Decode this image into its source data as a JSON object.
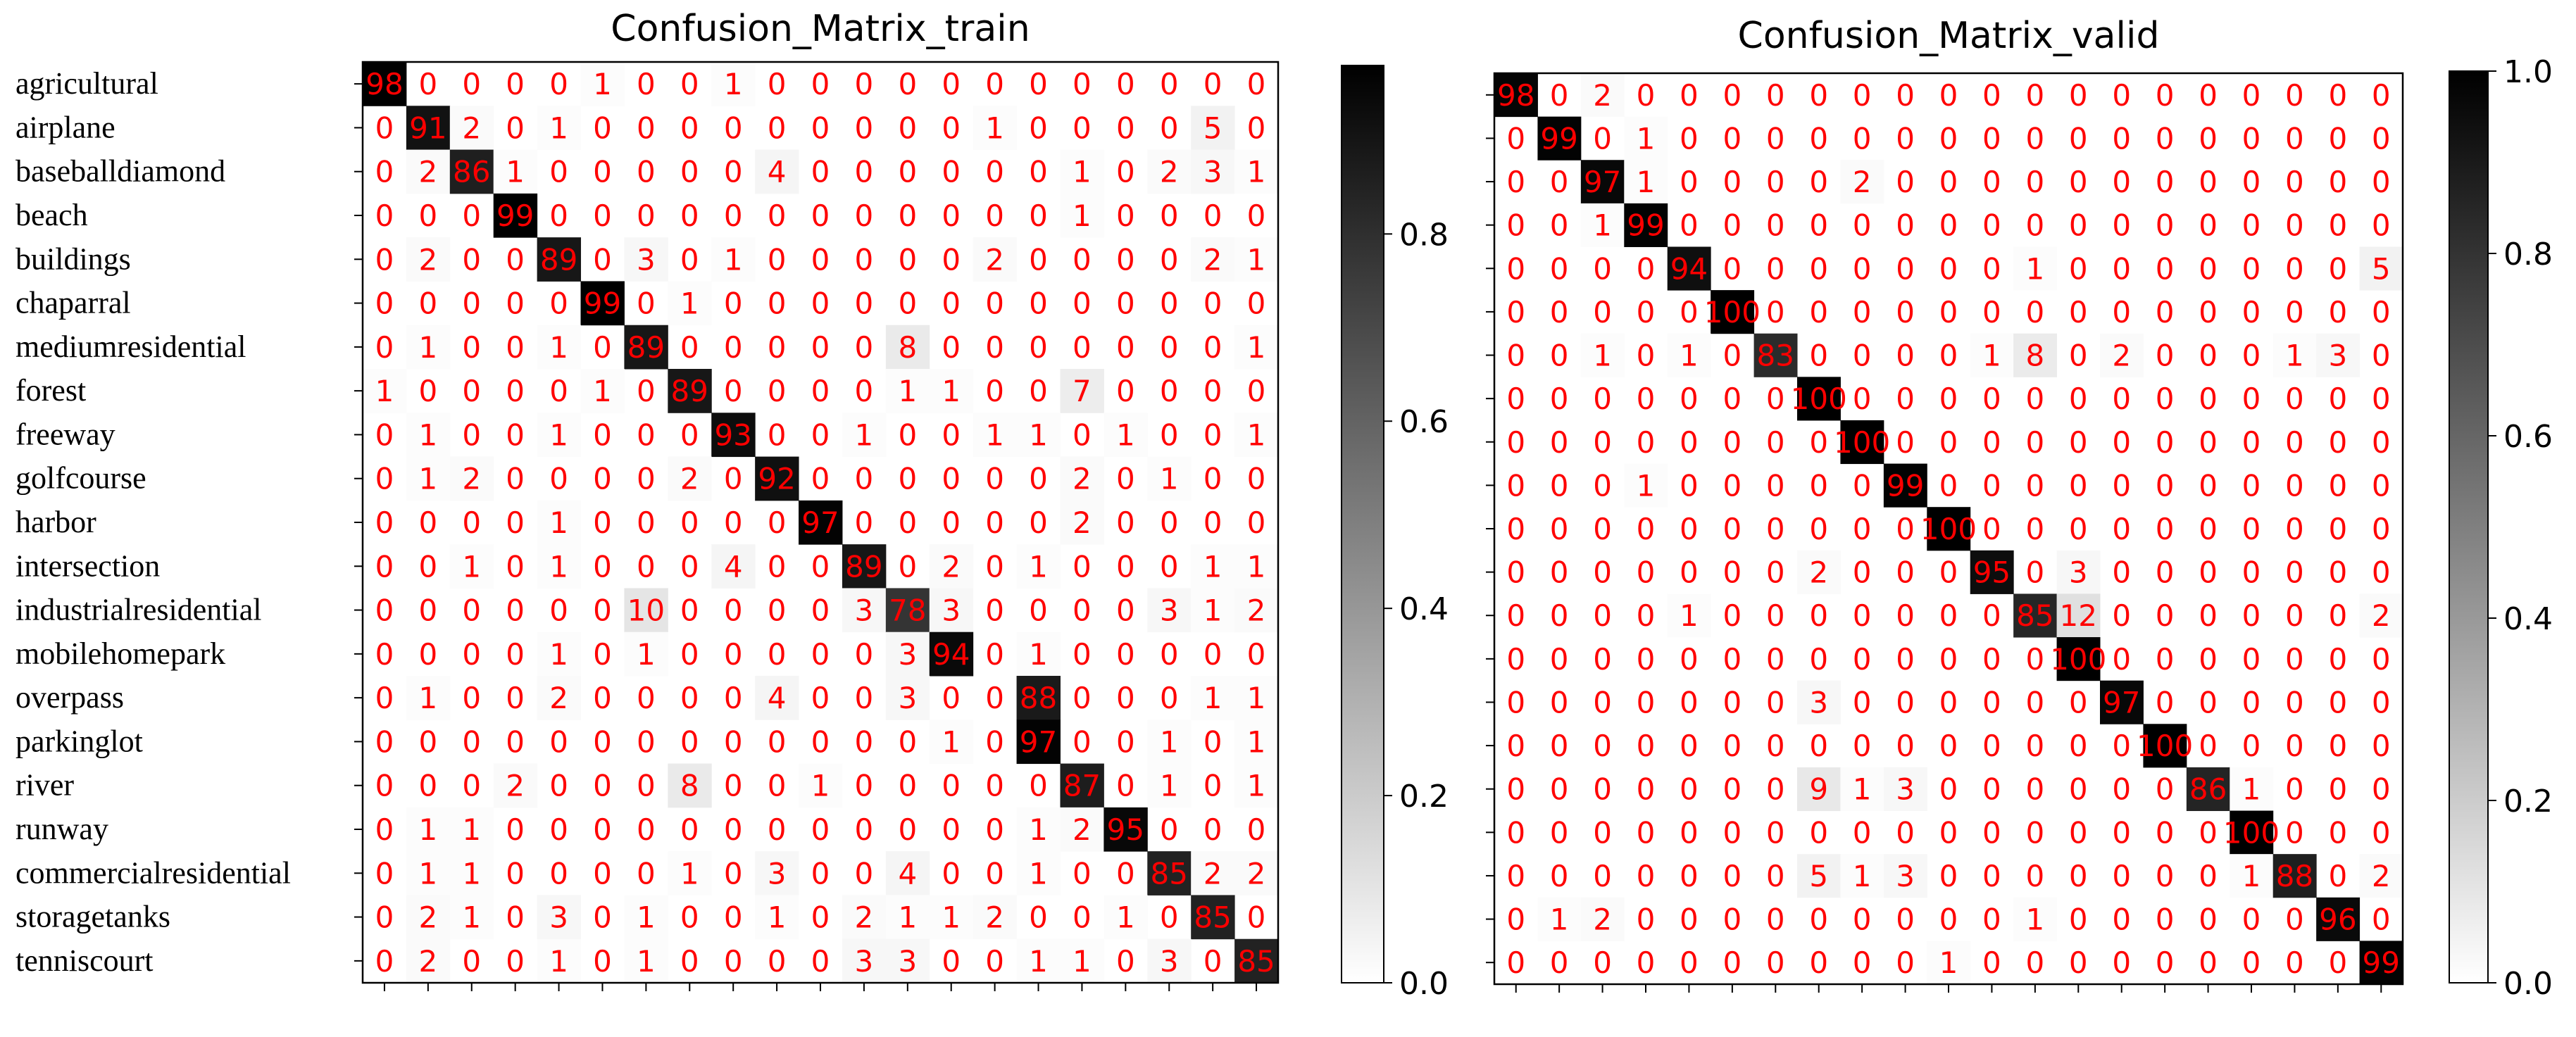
{
  "class_labels": [
    "agricultural",
    "airplane",
    "baseballdiamond",
    "beach",
    "buildings",
    "chaparral",
    "mediumresidential",
    "forest",
    "freeway",
    "golfcourse",
    "harbor",
    "intersection",
    "industrialresidential",
    "mobilehomepark",
    "overpass",
    "parkinglot",
    "river",
    "runway",
    "commercialresidential",
    "storagetanks",
    "tenniscourt"
  ],
  "colors": {
    "cell_text": "#ff0000",
    "cmap_low": "#ffffff",
    "cmap_high": "#000000",
    "frame": "#000000"
  },
  "chart_data": [
    {
      "type": "heatmap",
      "title": "Confusion_Matrix_train",
      "row_labels": [
        "agricultural",
        "airplane",
        "baseballdiamond",
        "beach",
        "buildings",
        "chaparral",
        "mediumresidential",
        "forest",
        "freeway",
        "golfcourse",
        "harbor",
        "intersection",
        "industrialresidential",
        "mobilehomepark",
        "overpass",
        "parkinglot",
        "river",
        "runway",
        "commercialresidential",
        "storagetanks",
        "tenniscourt"
      ],
      "values": [
        [
          98,
          0,
          0,
          0,
          0,
          1,
          0,
          0,
          1,
          0,
          0,
          0,
          0,
          0,
          0,
          0,
          0,
          0,
          0,
          0,
          0
        ],
        [
          0,
          91,
          2,
          0,
          1,
          0,
          0,
          0,
          0,
          0,
          0,
          0,
          0,
          0,
          1,
          0,
          0,
          0,
          0,
          5,
          0
        ],
        [
          0,
          2,
          86,
          1,
          0,
          0,
          0,
          0,
          0,
          4,
          0,
          0,
          0,
          0,
          0,
          0,
          1,
          0,
          2,
          3,
          1
        ],
        [
          0,
          0,
          0,
          99,
          0,
          0,
          0,
          0,
          0,
          0,
          0,
          0,
          0,
          0,
          0,
          0,
          1,
          0,
          0,
          0,
          0
        ],
        [
          0,
          2,
          0,
          0,
          89,
          0,
          3,
          0,
          1,
          0,
          0,
          0,
          0,
          0,
          2,
          0,
          0,
          0,
          0,
          2,
          1
        ],
        [
          0,
          0,
          0,
          0,
          0,
          99,
          0,
          1,
          0,
          0,
          0,
          0,
          0,
          0,
          0,
          0,
          0,
          0,
          0,
          0,
          0
        ],
        [
          0,
          1,
          0,
          0,
          1,
          0,
          89,
          0,
          0,
          0,
          0,
          0,
          8,
          0,
          0,
          0,
          0,
          0,
          0,
          0,
          1
        ],
        [
          1,
          0,
          0,
          0,
          0,
          1,
          0,
          89,
          0,
          0,
          0,
          0,
          1,
          1,
          0,
          0,
          7,
          0,
          0,
          0,
          0
        ],
        [
          0,
          1,
          0,
          0,
          1,
          0,
          0,
          0,
          93,
          0,
          0,
          1,
          0,
          0,
          1,
          1,
          0,
          1,
          0,
          0,
          1
        ],
        [
          0,
          1,
          2,
          0,
          0,
          0,
          0,
          2,
          0,
          92,
          0,
          0,
          0,
          0,
          0,
          0,
          2,
          0,
          1,
          0,
          0
        ],
        [
          0,
          0,
          0,
          0,
          1,
          0,
          0,
          0,
          0,
          0,
          97,
          0,
          0,
          0,
          0,
          0,
          2,
          0,
          0,
          0,
          0
        ],
        [
          0,
          0,
          1,
          0,
          1,
          0,
          0,
          0,
          4,
          0,
          0,
          89,
          0,
          2,
          0,
          1,
          0,
          0,
          0,
          1,
          1
        ],
        [
          0,
          0,
          0,
          0,
          0,
          0,
          10,
          0,
          0,
          0,
          0,
          3,
          78,
          3,
          0,
          0,
          0,
          0,
          3,
          1,
          2
        ],
        [
          0,
          0,
          0,
          0,
          1,
          0,
          1,
          0,
          0,
          0,
          0,
          0,
          3,
          94,
          0,
          1,
          0,
          0,
          0,
          0,
          0
        ],
        [
          0,
          1,
          0,
          0,
          2,
          0,
          0,
          0,
          0,
          4,
          0,
          0,
          3,
          0,
          0,
          88,
          0,
          0,
          0,
          1,
          1
        ],
        [
          0,
          0,
          0,
          0,
          0,
          0,
          0,
          0,
          0,
          0,
          0,
          0,
          0,
          1,
          0,
          97,
          0,
          0,
          1,
          0,
          1
        ],
        [
          0,
          0,
          0,
          2,
          0,
          0,
          0,
          8,
          0,
          0,
          1,
          0,
          0,
          0,
          0,
          0,
          87,
          0,
          1,
          0,
          1
        ],
        [
          0,
          1,
          1,
          0,
          0,
          0,
          0,
          0,
          0,
          0,
          0,
          0,
          0,
          0,
          0,
          1,
          2,
          95,
          0,
          0,
          0
        ],
        [
          0,
          1,
          1,
          0,
          0,
          0,
          0,
          1,
          0,
          3,
          0,
          0,
          4,
          0,
          0,
          1,
          0,
          0,
          85,
          2,
          2
        ],
        [
          0,
          2,
          1,
          0,
          3,
          0,
          1,
          0,
          0,
          1,
          0,
          2,
          1,
          1,
          2,
          0,
          0,
          1,
          0,
          85,
          0
        ],
        [
          0,
          2,
          0,
          0,
          1,
          0,
          1,
          0,
          0,
          0,
          0,
          3,
          3,
          0,
          0,
          1,
          1,
          0,
          3,
          0,
          85
        ]
      ],
      "colorbar": {
        "range": [
          0,
          0.98
        ],
        "ticks": [
          "0.0",
          "0.2",
          "0.4",
          "0.6",
          "0.8"
        ],
        "tick_values": [
          0,
          0.2,
          0.4,
          0.6,
          0.8
        ]
      },
      "grid": false
    },
    {
      "type": "heatmap",
      "title": "Confusion_Matrix_valid",
      "values": [
        [
          98,
          0,
          2,
          0,
          0,
          0,
          0,
          0,
          0,
          0,
          0,
          0,
          0,
          0,
          0,
          0,
          0,
          0,
          0,
          0,
          0
        ],
        [
          0,
          99,
          0,
          1,
          0,
          0,
          0,
          0,
          0,
          0,
          0,
          0,
          0,
          0,
          0,
          0,
          0,
          0,
          0,
          0,
          0
        ],
        [
          0,
          0,
          97,
          1,
          0,
          0,
          0,
          0,
          2,
          0,
          0,
          0,
          0,
          0,
          0,
          0,
          0,
          0,
          0,
          0,
          0
        ],
        [
          0,
          0,
          1,
          99,
          0,
          0,
          0,
          0,
          0,
          0,
          0,
          0,
          0,
          0,
          0,
          0,
          0,
          0,
          0,
          0,
          0
        ],
        [
          0,
          0,
          0,
          0,
          94,
          0,
          0,
          0,
          0,
          0,
          0,
          0,
          1,
          0,
          0,
          0,
          0,
          0,
          0,
          0,
          5
        ],
        [
          0,
          0,
          0,
          0,
          0,
          100,
          0,
          0,
          0,
          0,
          0,
          0,
          0,
          0,
          0,
          0,
          0,
          0,
          0,
          0,
          0
        ],
        [
          0,
          0,
          1,
          0,
          1,
          0,
          83,
          0,
          0,
          0,
          0,
          1,
          8,
          0,
          2,
          0,
          0,
          0,
          1,
          3,
          0
        ],
        [
          0,
          0,
          0,
          0,
          0,
          0,
          0,
          100,
          0,
          0,
          0,
          0,
          0,
          0,
          0,
          0,
          0,
          0,
          0,
          0,
          0
        ],
        [
          0,
          0,
          0,
          0,
          0,
          0,
          0,
          0,
          100,
          0,
          0,
          0,
          0,
          0,
          0,
          0,
          0,
          0,
          0,
          0,
          0
        ],
        [
          0,
          0,
          0,
          1,
          0,
          0,
          0,
          0,
          0,
          99,
          0,
          0,
          0,
          0,
          0,
          0,
          0,
          0,
          0,
          0,
          0
        ],
        [
          0,
          0,
          0,
          0,
          0,
          0,
          0,
          0,
          0,
          0,
          100,
          0,
          0,
          0,
          0,
          0,
          0,
          0,
          0,
          0,
          0
        ],
        [
          0,
          0,
          0,
          0,
          0,
          0,
          0,
          2,
          0,
          0,
          0,
          95,
          0,
          3,
          0,
          0,
          0,
          0,
          0,
          0,
          0
        ],
        [
          0,
          0,
          0,
          0,
          1,
          0,
          0,
          0,
          0,
          0,
          0,
          0,
          85,
          12,
          0,
          0,
          0,
          0,
          0,
          0,
          2
        ],
        [
          0,
          0,
          0,
          0,
          0,
          0,
          0,
          0,
          0,
          0,
          0,
          0,
          0,
          100,
          0,
          0,
          0,
          0,
          0,
          0,
          0
        ],
        [
          0,
          0,
          0,
          0,
          0,
          0,
          0,
          3,
          0,
          0,
          0,
          0,
          0,
          0,
          97,
          0,
          0,
          0,
          0,
          0,
          0
        ],
        [
          0,
          0,
          0,
          0,
          0,
          0,
          0,
          0,
          0,
          0,
          0,
          0,
          0,
          0,
          0,
          100,
          0,
          0,
          0,
          0,
          0
        ],
        [
          0,
          0,
          0,
          0,
          0,
          0,
          0,
          9,
          1,
          3,
          0,
          0,
          0,
          0,
          0,
          0,
          86,
          1,
          0,
          0,
          0
        ],
        [
          0,
          0,
          0,
          0,
          0,
          0,
          0,
          0,
          0,
          0,
          0,
          0,
          0,
          0,
          0,
          0,
          0,
          100,
          0,
          0,
          0
        ],
        [
          0,
          0,
          0,
          0,
          0,
          0,
          0,
          5,
          1,
          3,
          0,
          0,
          0,
          0,
          0,
          0,
          0,
          1,
          88,
          0,
          2
        ],
        [
          0,
          1,
          2,
          0,
          0,
          0,
          0,
          0,
          0,
          0,
          0,
          0,
          1,
          0,
          0,
          0,
          0,
          0,
          0,
          96,
          0
        ],
        [
          0,
          0,
          0,
          0,
          0,
          0,
          0,
          0,
          0,
          0,
          1,
          0,
          0,
          0,
          0,
          0,
          0,
          0,
          0,
          0,
          99
        ]
      ],
      "colorbar": {
        "range": [
          0,
          1.0
        ],
        "ticks": [
          "0.0",
          "0.2",
          "0.4",
          "0.6",
          "0.8",
          "1.0"
        ],
        "tick_values": [
          0,
          0.2,
          0.4,
          0.6,
          0.8,
          1.0
        ]
      },
      "grid": false
    }
  ]
}
